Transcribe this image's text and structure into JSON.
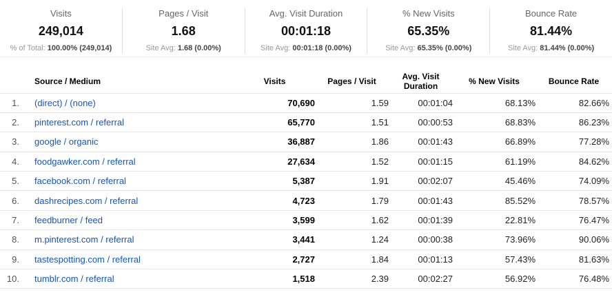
{
  "colors": {
    "link": "#1155cc"
  },
  "scorecards": [
    {
      "label": "Visits",
      "value": "249,014",
      "sub_label": "% of Total:",
      "sub_value": "100.00% (249,014)"
    },
    {
      "label": "Pages / Visit",
      "value": "1.68",
      "sub_label": "Site Avg:",
      "sub_value": "1.68 (0.00%)"
    },
    {
      "label": "Avg. Visit Duration",
      "value": "00:01:18",
      "sub_label": "Site Avg:",
      "sub_value": "00:01:18 (0.00%)"
    },
    {
      "label": "% New Visits",
      "value": "65.35%",
      "sub_label": "Site Avg:",
      "sub_value": "65.35% (0.00%)"
    },
    {
      "label": "Bounce Rate",
      "value": "81.44%",
      "sub_label": "Site Avg:",
      "sub_value": "81.44% (0.00%)"
    }
  ],
  "table": {
    "columns": [
      "Source / Medium",
      "Visits",
      "Pages / Visit",
      "Avg. Visit Duration",
      "% New Visits",
      "Bounce Rate"
    ],
    "rows": [
      {
        "rank": "1.",
        "source": "(direct) / (none)",
        "visits": "70,690",
        "pages_per_visit": "1.59",
        "avg_duration": "00:01:04",
        "pct_new_visits": "68.13%",
        "bounce_rate": "82.66%"
      },
      {
        "rank": "2.",
        "source": "pinterest.com / referral",
        "visits": "65,770",
        "pages_per_visit": "1.51",
        "avg_duration": "00:00:53",
        "pct_new_visits": "68.83%",
        "bounce_rate": "86.23%"
      },
      {
        "rank": "3.",
        "source": "google / organic",
        "visits": "36,887",
        "pages_per_visit": "1.86",
        "avg_duration": "00:01:43",
        "pct_new_visits": "66.89%",
        "bounce_rate": "77.28%"
      },
      {
        "rank": "4.",
        "source": "foodgawker.com / referral",
        "visits": "27,634",
        "pages_per_visit": "1.52",
        "avg_duration": "00:01:15",
        "pct_new_visits": "61.19%",
        "bounce_rate": "84.62%"
      },
      {
        "rank": "5.",
        "source": "facebook.com / referral",
        "visits": "5,387",
        "pages_per_visit": "1.91",
        "avg_duration": "00:02:07",
        "pct_new_visits": "45.46%",
        "bounce_rate": "74.09%"
      },
      {
        "rank": "6.",
        "source": "dashrecipes.com / referral",
        "visits": "4,723",
        "pages_per_visit": "1.79",
        "avg_duration": "00:01:43",
        "pct_new_visits": "85.52%",
        "bounce_rate": "78.57%"
      },
      {
        "rank": "7.",
        "source": "feedburner / feed",
        "visits": "3,599",
        "pages_per_visit": "1.62",
        "avg_duration": "00:01:39",
        "pct_new_visits": "22.81%",
        "bounce_rate": "76.47%"
      },
      {
        "rank": "8.",
        "source": "m.pinterest.com / referral",
        "visits": "3,441",
        "pages_per_visit": "1.24",
        "avg_duration": "00:00:38",
        "pct_new_visits": "73.96%",
        "bounce_rate": "90.06%"
      },
      {
        "rank": "9.",
        "source": "tastespotting.com / referral",
        "visits": "2,727",
        "pages_per_visit": "1.84",
        "avg_duration": "00:01:13",
        "pct_new_visits": "57.43%",
        "bounce_rate": "81.63%"
      },
      {
        "rank": "10.",
        "source": "tumblr.com / referral",
        "visits": "1,518",
        "pages_per_visit": "2.39",
        "avg_duration": "00:02:27",
        "pct_new_visits": "56.92%",
        "bounce_rate": "76.48%"
      }
    ]
  }
}
